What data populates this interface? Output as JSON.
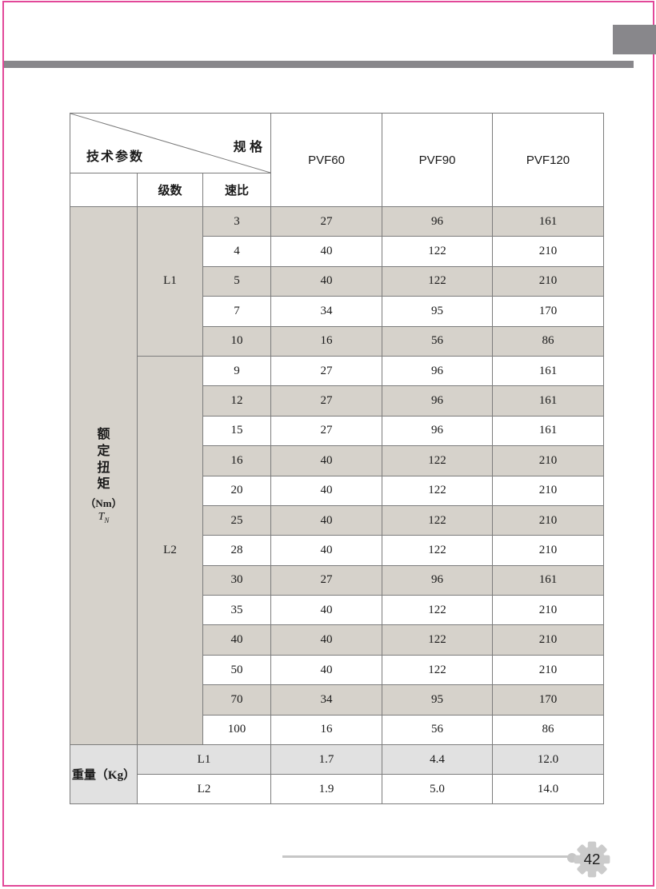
{
  "page": {
    "number": "42",
    "colors": {
      "accent_pink": "#e24899",
      "header_gray": "#88878b",
      "row_shade_warm": "#d6d2cb",
      "weight_shade": "#e1e1e1",
      "special_cell_shade": "#dfdfdc",
      "footer_line_gray": "#c6c6c6",
      "gear_gray": "#cbcbcb"
    }
  },
  "table": {
    "corner_top_right": "规 格",
    "corner_bottom_left": "技术参数",
    "columns": [
      "PVF60",
      "PVF90",
      "PVF120"
    ],
    "stages_label": "级数",
    "ratio_label": "速比",
    "torque": {
      "vertical_label": "额定扭矩",
      "unit": "（Nm）",
      "symbol": "T",
      "symbol_sub": "N"
    },
    "groups": [
      {
        "label": "L1",
        "rows": [
          {
            "ratio": "3",
            "values": [
              "27",
              "96",
              "161"
            ]
          },
          {
            "ratio": "4",
            "values": [
              "40",
              "122",
              "210"
            ]
          },
          {
            "ratio": "5",
            "values": [
              "40",
              "122",
              "210"
            ]
          },
          {
            "ratio": "7",
            "values": [
              "34",
              "95",
              "170"
            ]
          },
          {
            "ratio": "10",
            "values": [
              "16",
              "56",
              "86"
            ]
          }
        ]
      },
      {
        "label": "L2",
        "rows": [
          {
            "ratio": "9",
            "values": [
              "27",
              "96",
              "161"
            ]
          },
          {
            "ratio": "12",
            "values": [
              "27",
              "96",
              "161"
            ]
          },
          {
            "ratio": "15",
            "values": [
              "27",
              "96",
              "161"
            ]
          },
          {
            "ratio": "16",
            "values": [
              "40",
              "122",
              "210"
            ]
          },
          {
            "ratio": "20",
            "values": [
              "40",
              "122",
              "210"
            ]
          },
          {
            "ratio": "25",
            "values": [
              "40",
              "122",
              "210"
            ]
          },
          {
            "ratio": "28",
            "values": [
              "40",
              "122",
              "210"
            ]
          },
          {
            "ratio": "30",
            "values": [
              "27",
              "96",
              "161"
            ]
          },
          {
            "ratio": "35",
            "values": [
              "40",
              "122",
              "210"
            ]
          },
          {
            "ratio": "40",
            "values": [
              "40",
              "122",
              "210"
            ]
          },
          {
            "ratio": "50",
            "values": [
              "40",
              "122",
              "210"
            ]
          },
          {
            "ratio": "70",
            "values": [
              "34",
              "95",
              "170"
            ],
            "first_value_light": true
          },
          {
            "ratio": "100",
            "values": [
              "16",
              "56",
              "86"
            ]
          }
        ]
      }
    ],
    "weight": {
      "label": "重量（Kg）",
      "rows": [
        {
          "label": "L1",
          "values": [
            "1.7",
            "4.4",
            "12.0"
          ]
        },
        {
          "label": "L2",
          "values": [
            "1.9",
            "5.0",
            "14.0"
          ]
        }
      ]
    }
  }
}
